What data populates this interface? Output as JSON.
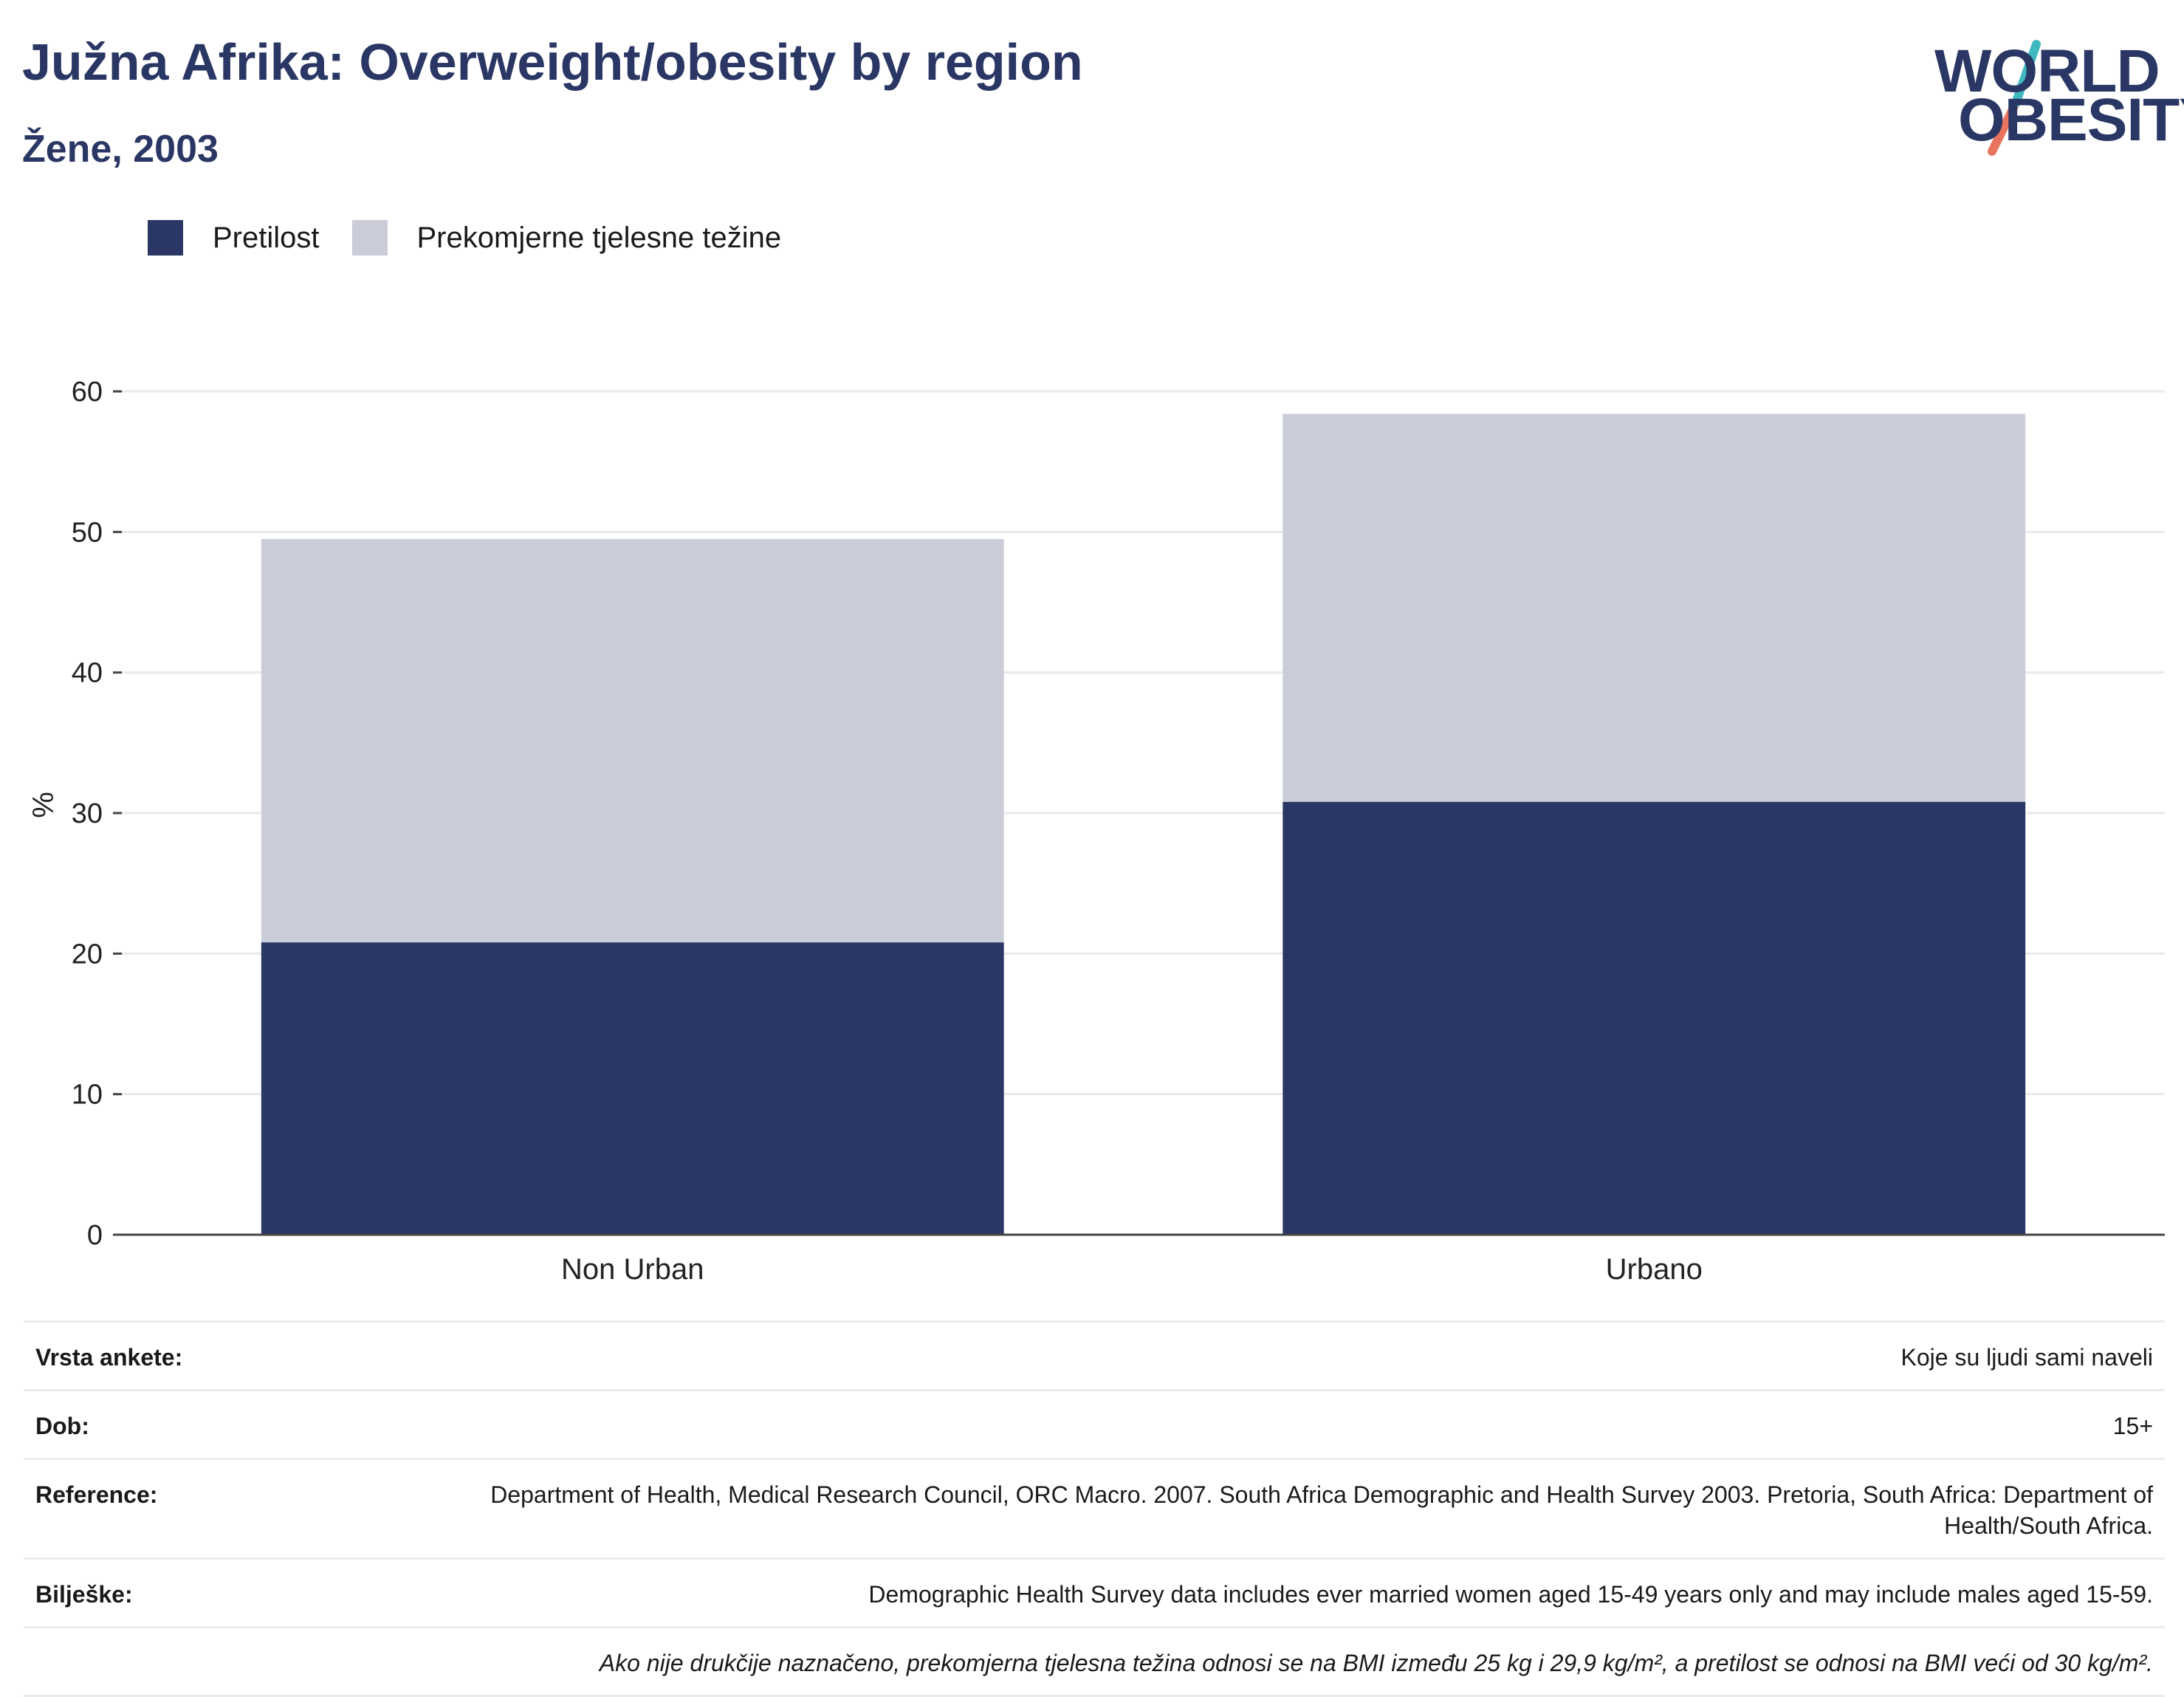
{
  "title": "Južna Afrika: Overweight/obesity by region",
  "subtitle": "Žene, 2003",
  "logo": {
    "line1": "WORLD",
    "line2": "OBESITY",
    "icon": "slash-logo-mark"
  },
  "colors": {
    "obesity": "#2a3664",
    "overweight": "#cacdd8",
    "title": "#2a3664",
    "grid": "#e9e9ee",
    "axis": "#444444"
  },
  "chart_data": {
    "type": "bar",
    "stacked": true,
    "categories": [
      "Non Urban",
      "Urbano"
    ],
    "series": [
      {
        "name": "Pretilost",
        "values": [
          20.8,
          30.8
        ]
      },
      {
        "name": "Prekomjerne tjelesne težine",
        "values": [
          28.7,
          27.6
        ]
      }
    ],
    "ylabel": "%",
    "ylim": [
      0,
      60
    ],
    "yticks": [
      0,
      10,
      20,
      30,
      40,
      50,
      60
    ],
    "grid": true,
    "legend": "top-left"
  },
  "info": [
    {
      "key": "Vrsta ankete:",
      "value": "Koje su ljudi sami naveli"
    },
    {
      "key": "Dob:",
      "value": "15+"
    },
    {
      "key": "Reference:",
      "value": "Department of Health, Medical Research Council, ORC Macro. 2007. South Africa Demographic and Health Survey 2003. Pretoria, South Africa: Department of Health/South Africa."
    },
    {
      "key": "Bilješke:",
      "value": "Demographic Health Survey data includes ever married women aged 15-49 years only and may include males aged 15-59."
    }
  ],
  "footnote": "Ako nije drukčije naznačeno, prekomjerna tjelesna težina odnosi se na BMI između 25 kg i 29,9 kg/m², a pretilost se odnosi na BMI veći od 30 kg/m²."
}
